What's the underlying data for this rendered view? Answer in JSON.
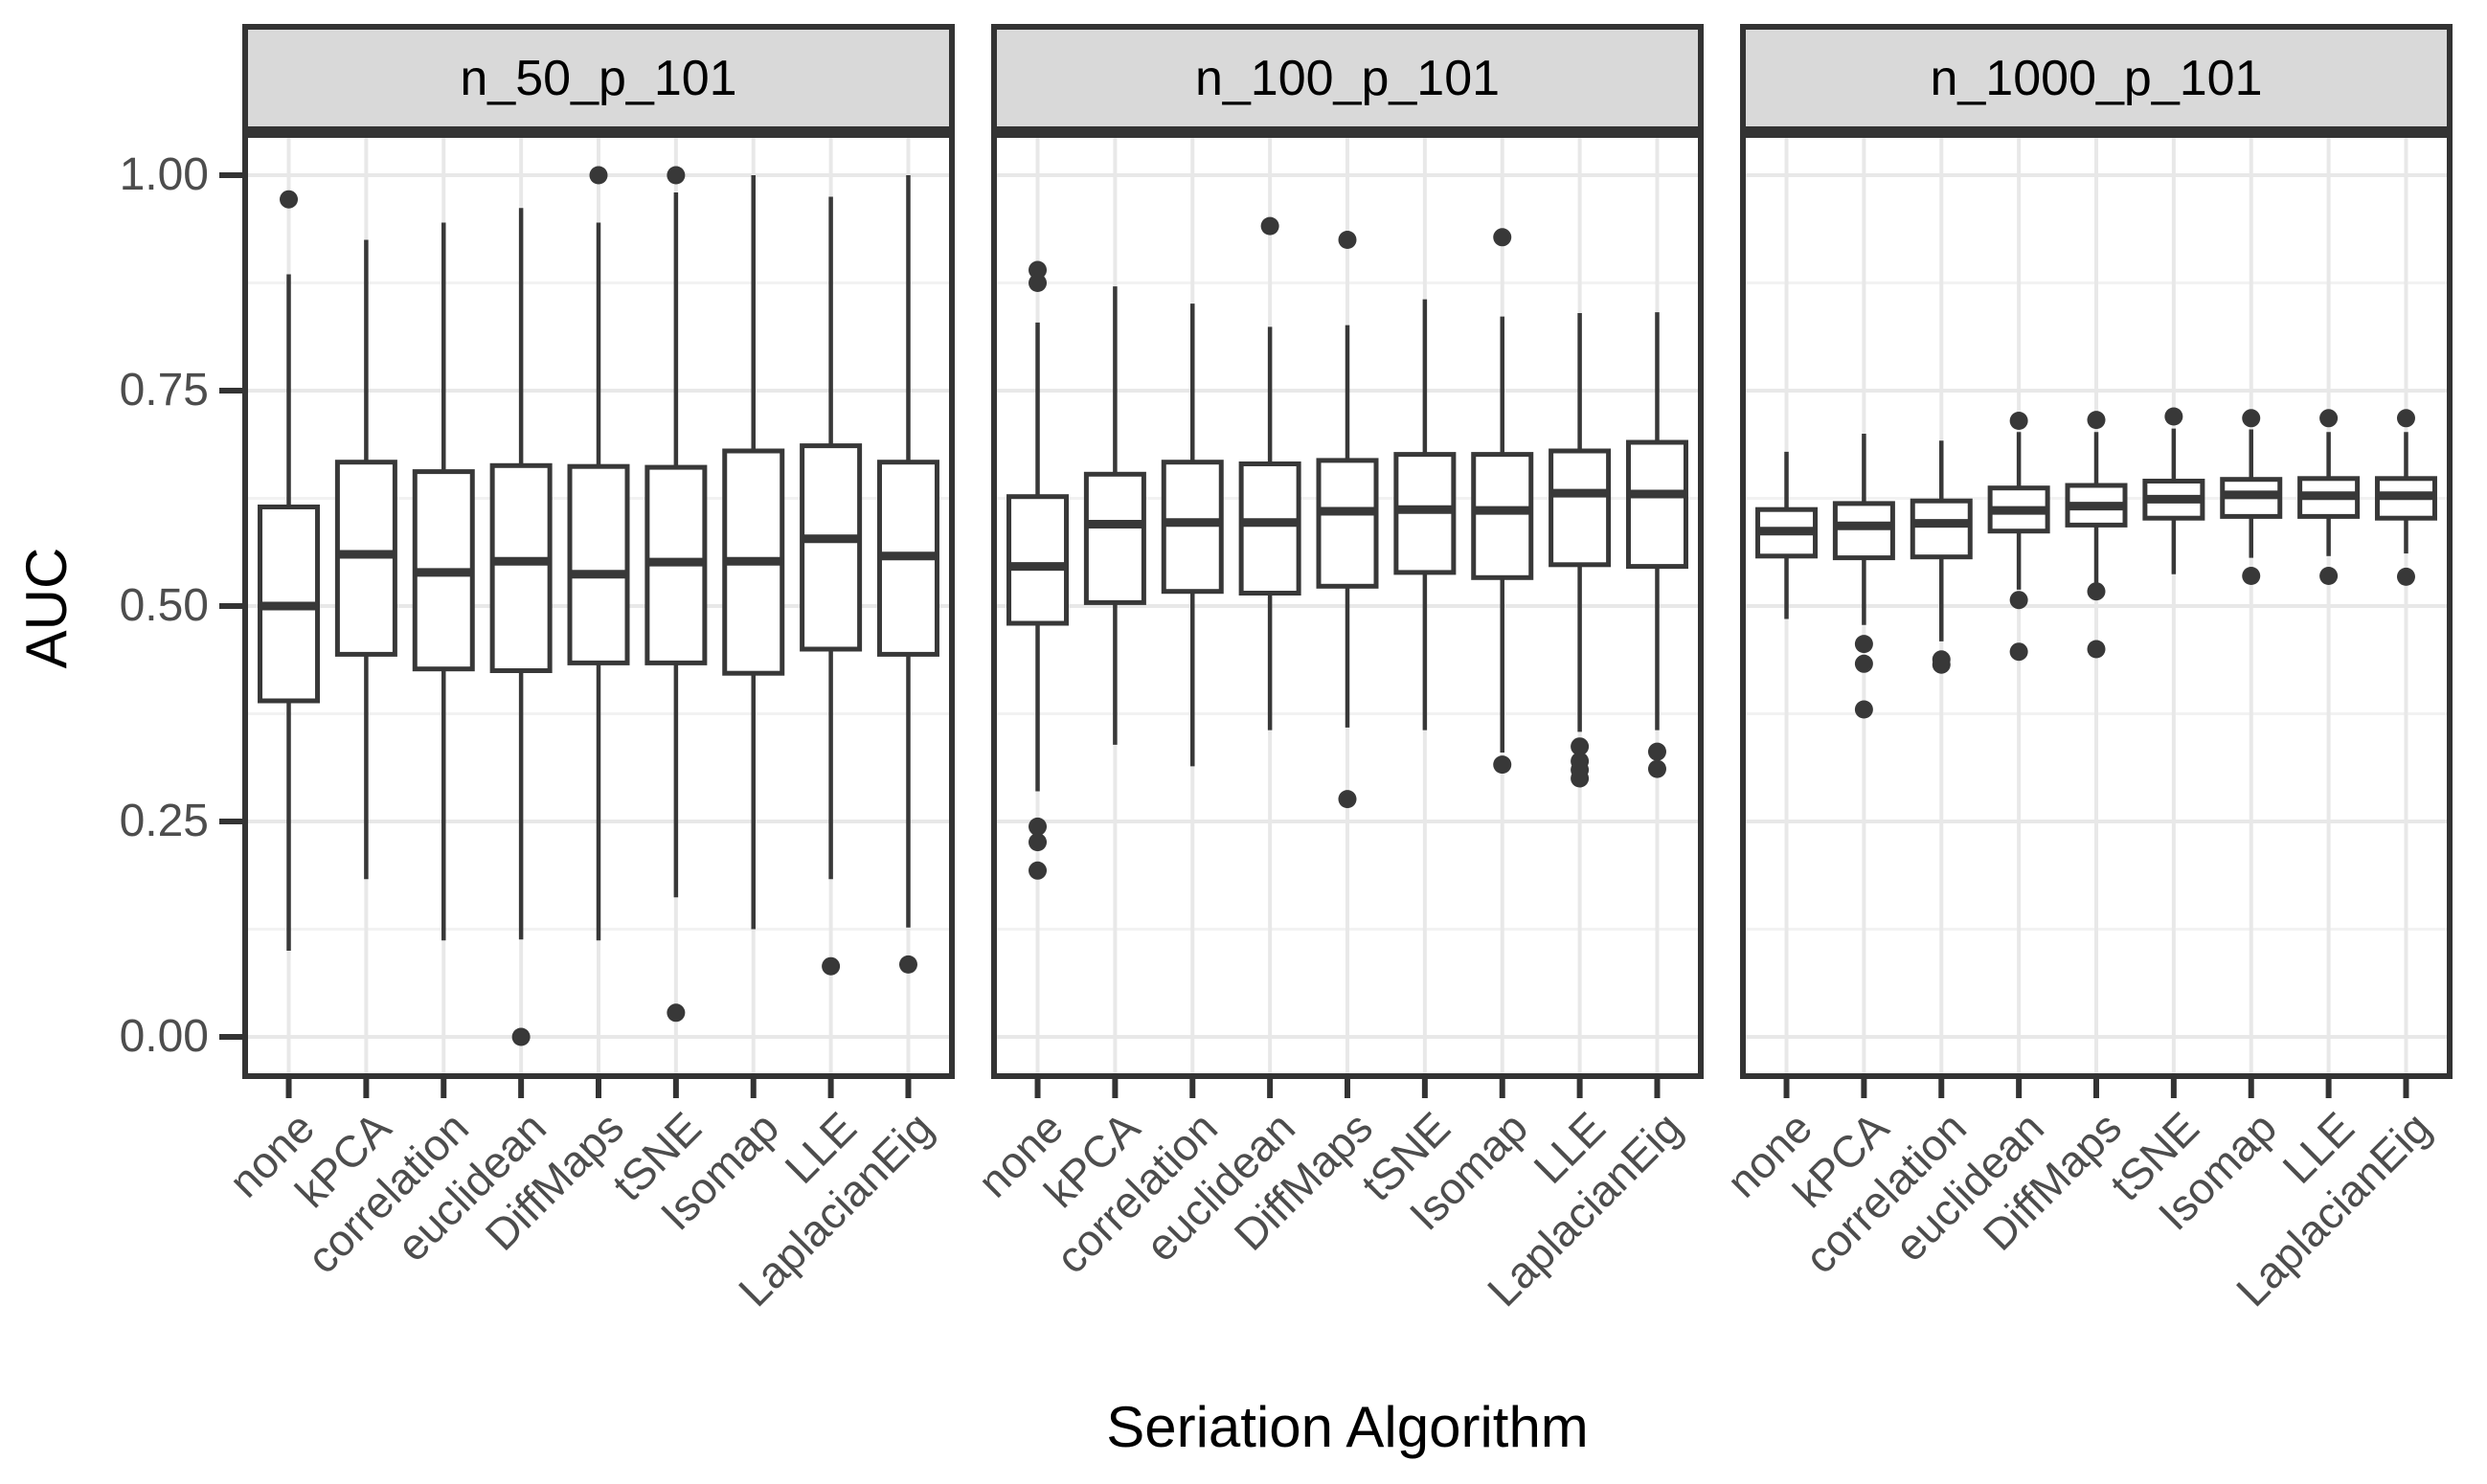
{
  "figure": {
    "y_axis": {
      "title": "AUC",
      "tick_labels": [
        "1.00",
        "0.75",
        "0.50",
        "0.25",
        "0.00"
      ],
      "tick_values": [
        1.0,
        0.75,
        0.5,
        0.25,
        0.0
      ],
      "limits": [
        0,
        1
      ]
    },
    "x_axis": {
      "title": "Seriation Algorithm",
      "categories": [
        "none",
        "kPCA",
        "correlation",
        "euclidean",
        "DiffMaps",
        "tSNE",
        "Isomap",
        "LLE",
        "LaplacianEig"
      ]
    },
    "facet_titles": [
      "n_50_p_101",
      "n_100_p_101",
      "n_1000_p_101"
    ],
    "colors": {
      "box_stroke": "#383838",
      "box_fill": "#ffffff",
      "outlier": "#383838",
      "panel_border": "#333333",
      "strip_fill": "#d9d9d9",
      "grid_major": "#e8e8e8",
      "grid_minor": "#f2f2f2",
      "tick_label": "#4d4d4d",
      "axis_title": "#000000",
      "background": "#ffffff"
    }
  },
  "chart_data": {
    "type": "boxplot",
    "title": "",
    "xlabel": "Seriation Algorithm",
    "ylabel": "AUC",
    "ylim": [
      0,
      1
    ],
    "grid": "horizontal major+minor, vertical major at each category; faceted in 3 panels",
    "legend": "none",
    "categories": [
      "none",
      "kPCA",
      "correlation",
      "euclidean",
      "DiffMaps",
      "tSNE",
      "Isomap",
      "LLE",
      "LaplacianEig"
    ],
    "facets": [
      {
        "label": "n_50_p_101",
        "boxes": [
          {
            "category": "none",
            "low": 0.1,
            "q1": 0.39,
            "median": 0.5,
            "q3": 0.615,
            "high": 0.885,
            "outliers": [
              0.972
            ]
          },
          {
            "category": "kPCA",
            "low": 0.183,
            "q1": 0.444,
            "median": 0.56,
            "q3": 0.667,
            "high": 0.925,
            "outliers": []
          },
          {
            "category": "correlation",
            "low": 0.112,
            "q1": 0.427,
            "median": 0.539,
            "q3": 0.656,
            "high": 0.945,
            "outliers": []
          },
          {
            "category": "euclidean",
            "low": 0.113,
            "q1": 0.425,
            "median": 0.552,
            "q3": 0.663,
            "high": 0.962,
            "outliers": [
              0.0
            ]
          },
          {
            "category": "DiffMaps",
            "low": 0.112,
            "q1": 0.434,
            "median": 0.537,
            "q3": 0.662,
            "high": 0.945,
            "outliers": [
              1.0
            ]
          },
          {
            "category": "tSNE",
            "low": 0.162,
            "q1": 0.434,
            "median": 0.551,
            "q3": 0.661,
            "high": 0.98,
            "outliers": [
              1.0,
              0.028
            ]
          },
          {
            "category": "Isomap",
            "low": 0.125,
            "q1": 0.422,
            "median": 0.552,
            "q3": 0.68,
            "high": 1.0,
            "outliers": []
          },
          {
            "category": "LLE",
            "low": 0.183,
            "q1": 0.45,
            "median": 0.578,
            "q3": 0.686,
            "high": 0.975,
            "outliers": [
              0.082
            ]
          },
          {
            "category": "LaplacianEig",
            "low": 0.127,
            "q1": 0.444,
            "median": 0.558,
            "q3": 0.667,
            "high": 1.0,
            "outliers": [
              0.084
            ]
          }
        ]
      },
      {
        "label": "n_100_p_101",
        "boxes": [
          {
            "category": "none",
            "low": 0.285,
            "q1": 0.48,
            "median": 0.546,
            "q3": 0.627,
            "high": 0.829,
            "outliers": [
              0.89,
              0.875,
              0.244,
              0.226,
              0.193
            ]
          },
          {
            "category": "kPCA",
            "low": 0.339,
            "q1": 0.504,
            "median": 0.595,
            "q3": 0.653,
            "high": 0.871,
            "outliers": []
          },
          {
            "category": "correlation",
            "low": 0.314,
            "q1": 0.517,
            "median": 0.597,
            "q3": 0.667,
            "high": 0.851,
            "outliers": []
          },
          {
            "category": "euclidean",
            "low": 0.356,
            "q1": 0.515,
            "median": 0.597,
            "q3": 0.665,
            "high": 0.824,
            "outliers": [
              0.941
            ]
          },
          {
            "category": "DiffMaps",
            "low": 0.359,
            "q1": 0.523,
            "median": 0.61,
            "q3": 0.669,
            "high": 0.826,
            "outliers": [
              0.925,
              0.276
            ]
          },
          {
            "category": "tSNE",
            "low": 0.356,
            "q1": 0.539,
            "median": 0.612,
            "q3": 0.676,
            "high": 0.856,
            "outliers": []
          },
          {
            "category": "Isomap",
            "low": 0.33,
            "q1": 0.533,
            "median": 0.611,
            "q3": 0.676,
            "high": 0.836,
            "outliers": [
              0.928,
              0.316
            ]
          },
          {
            "category": "LLE",
            "low": 0.354,
            "q1": 0.548,
            "median": 0.631,
            "q3": 0.68,
            "high": 0.84,
            "outliers": [
              0.337,
              0.32,
              0.31,
              0.3
            ]
          },
          {
            "category": "LaplacianEig",
            "low": 0.356,
            "q1": 0.546,
            "median": 0.63,
            "q3": 0.69,
            "high": 0.841,
            "outliers": [
              0.331,
              0.311
            ]
          }
        ]
      },
      {
        "label": "n_1000_p_101",
        "boxes": [
          {
            "category": "none",
            "low": 0.485,
            "q1": 0.558,
            "median": 0.587,
            "q3": 0.612,
            "high": 0.679,
            "outliers": []
          },
          {
            "category": "kPCA",
            "low": 0.478,
            "q1": 0.556,
            "median": 0.593,
            "q3": 0.619,
            "high": 0.7,
            "outliers": [
              0.456,
              0.433,
              0.38
            ]
          },
          {
            "category": "correlation",
            "low": 0.459,
            "q1": 0.557,
            "median": 0.596,
            "q3": 0.622,
            "high": 0.692,
            "outliers": [
              0.438,
              0.432
            ]
          },
          {
            "category": "euclidean",
            "low": 0.519,
            "q1": 0.587,
            "median": 0.611,
            "q3": 0.637,
            "high": 0.702,
            "outliers": [
              0.715,
              0.507,
              0.447
            ]
          },
          {
            "category": "DiffMaps",
            "low": 0.52,
            "q1": 0.594,
            "median": 0.616,
            "q3": 0.64,
            "high": 0.702,
            "outliers": [
              0.716,
              0.517,
              0.45
            ]
          },
          {
            "category": "tSNE",
            "low": 0.537,
            "q1": 0.602,
            "median": 0.624,
            "q3": 0.645,
            "high": 0.706,
            "outliers": [
              0.72
            ]
          },
          {
            "category": "Isomap",
            "low": 0.556,
            "q1": 0.604,
            "median": 0.629,
            "q3": 0.647,
            "high": 0.705,
            "outliers": [
              0.718,
              0.535
            ]
          },
          {
            "category": "LLE",
            "low": 0.558,
            "q1": 0.604,
            "median": 0.628,
            "q3": 0.648,
            "high": 0.702,
            "outliers": [
              0.718,
              0.535
            ]
          },
          {
            "category": "LaplacianEig",
            "low": 0.561,
            "q1": 0.602,
            "median": 0.628,
            "q3": 0.648,
            "high": 0.702,
            "outliers": [
              0.718,
              0.534
            ]
          }
        ]
      }
    ]
  }
}
